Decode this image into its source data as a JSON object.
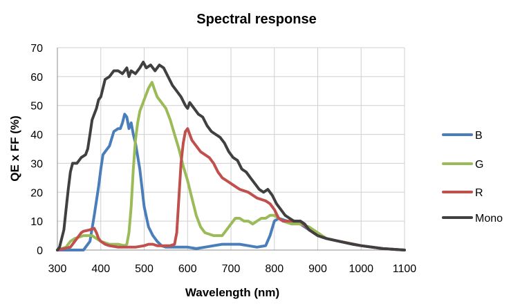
{
  "chart_data": {
    "type": "line",
    "title": "Spectral response",
    "xlabel": "Wavelength (nm)",
    "ylabel": "QE x FF (%)",
    "xlim": [
      300,
      1100
    ],
    "ylim": [
      0,
      70
    ],
    "xticks": [
      300,
      400,
      500,
      600,
      700,
      800,
      900,
      1000,
      1100
    ],
    "yticks": [
      0,
      10,
      20,
      30,
      40,
      50,
      60,
      70
    ],
    "grid": true,
    "legend_position": "right",
    "series": [
      {
        "name": "B",
        "color": "#4a7ebb",
        "points": [
          [
            300,
            0
          ],
          [
            360,
            0
          ],
          [
            375,
            3
          ],
          [
            385,
            12
          ],
          [
            395,
            22
          ],
          [
            400,
            28
          ],
          [
            405,
            33
          ],
          [
            410,
            34
          ],
          [
            420,
            36
          ],
          [
            430,
            41
          ],
          [
            440,
            42
          ],
          [
            445,
            42
          ],
          [
            450,
            44
          ],
          [
            455,
            47
          ],
          [
            460,
            46
          ],
          [
            465,
            42
          ],
          [
            470,
            44
          ],
          [
            475,
            40
          ],
          [
            480,
            37
          ],
          [
            490,
            28
          ],
          [
            500,
            15
          ],
          [
            510,
            8
          ],
          [
            520,
            5
          ],
          [
            530,
            3
          ],
          [
            540,
            1.5
          ],
          [
            550,
            1
          ],
          [
            570,
            1
          ],
          [
            600,
            1
          ],
          [
            620,
            0.5
          ],
          [
            640,
            1
          ],
          [
            660,
            1.5
          ],
          [
            680,
            2
          ],
          [
            700,
            2
          ],
          [
            720,
            2
          ],
          [
            740,
            1.5
          ],
          [
            760,
            1
          ],
          [
            780,
            1.5
          ],
          [
            790,
            5
          ],
          [
            800,
            10
          ],
          [
            810,
            11
          ],
          [
            830,
            10
          ],
          [
            860,
            9
          ],
          [
            880,
            7
          ],
          [
            900,
            5
          ],
          [
            920,
            4
          ],
          [
            950,
            3
          ],
          [
            1000,
            1.5
          ],
          [
            1050,
            0.5
          ],
          [
            1100,
            0
          ]
        ]
      },
      {
        "name": "G",
        "color": "#9bbb59",
        "points": [
          [
            300,
            0
          ],
          [
            320,
            1
          ],
          [
            330,
            3
          ],
          [
            340,
            4
          ],
          [
            360,
            5
          ],
          [
            380,
            5
          ],
          [
            390,
            4
          ],
          [
            400,
            3
          ],
          [
            420,
            2
          ],
          [
            440,
            2
          ],
          [
            455,
            1.5
          ],
          [
            460,
            2
          ],
          [
            465,
            6
          ],
          [
            470,
            15
          ],
          [
            475,
            28
          ],
          [
            480,
            38
          ],
          [
            485,
            44
          ],
          [
            490,
            48
          ],
          [
            500,
            52
          ],
          [
            510,
            56
          ],
          [
            518,
            58
          ],
          [
            525,
            55
          ],
          [
            530,
            53
          ],
          [
            540,
            51
          ],
          [
            550,
            49
          ],
          [
            560,
            45
          ],
          [
            570,
            40
          ],
          [
            580,
            35
          ],
          [
            590,
            29
          ],
          [
            600,
            24
          ],
          [
            610,
            18
          ],
          [
            620,
            12
          ],
          [
            630,
            8
          ],
          [
            640,
            6
          ],
          [
            660,
            5
          ],
          [
            680,
            5
          ],
          [
            690,
            7
          ],
          [
            700,
            9
          ],
          [
            710,
            11
          ],
          [
            720,
            11
          ],
          [
            730,
            10
          ],
          [
            740,
            10
          ],
          [
            750,
            9
          ],
          [
            760,
            10
          ],
          [
            770,
            11
          ],
          [
            780,
            11
          ],
          [
            790,
            12
          ],
          [
            800,
            12
          ],
          [
            810,
            11
          ],
          [
            820,
            10
          ],
          [
            840,
            9
          ],
          [
            860,
            9
          ],
          [
            880,
            8
          ],
          [
            900,
            6
          ],
          [
            920,
            4
          ],
          [
            950,
            3
          ],
          [
            1000,
            1.5
          ],
          [
            1050,
            0.5
          ],
          [
            1100,
            0
          ]
        ]
      },
      {
        "name": "R",
        "color": "#c0504d",
        "points": [
          [
            300,
            0
          ],
          [
            330,
            1
          ],
          [
            340,
            3
          ],
          [
            350,
            5
          ],
          [
            355,
            6
          ],
          [
            360,
            6.5
          ],
          [
            375,
            7
          ],
          [
            385,
            7.5
          ],
          [
            390,
            6
          ],
          [
            395,
            4
          ],
          [
            400,
            3
          ],
          [
            410,
            2
          ],
          [
            420,
            1.5
          ],
          [
            440,
            1
          ],
          [
            480,
            1
          ],
          [
            500,
            1.5
          ],
          [
            510,
            2
          ],
          [
            520,
            2
          ],
          [
            530,
            1.5
          ],
          [
            560,
            1.5
          ],
          [
            570,
            2
          ],
          [
            575,
            6
          ],
          [
            580,
            18
          ],
          [
            585,
            30
          ],
          [
            590,
            37
          ],
          [
            595,
            41
          ],
          [
            600,
            42
          ],
          [
            605,
            40
          ],
          [
            610,
            38
          ],
          [
            620,
            36
          ],
          [
            630,
            34
          ],
          [
            640,
            33
          ],
          [
            650,
            32
          ],
          [
            660,
            30
          ],
          [
            670,
            27
          ],
          [
            680,
            25
          ],
          [
            690,
            24
          ],
          [
            700,
            23
          ],
          [
            710,
            22
          ],
          [
            720,
            21
          ],
          [
            740,
            20
          ],
          [
            760,
            18
          ],
          [
            780,
            17
          ],
          [
            790,
            16
          ],
          [
            800,
            14
          ],
          [
            810,
            11
          ],
          [
            820,
            10
          ],
          [
            840,
            10
          ],
          [
            860,
            10
          ],
          [
            880,
            7
          ],
          [
            900,
            5
          ],
          [
            920,
            4
          ],
          [
            950,
            3
          ],
          [
            1000,
            1.5
          ],
          [
            1050,
            0.5
          ],
          [
            1100,
            0
          ]
        ]
      },
      {
        "name": "Mono",
        "color": "#404040",
        "points": [
          [
            300,
            0
          ],
          [
            305,
            1
          ],
          [
            315,
            7
          ],
          [
            320,
            14
          ],
          [
            325,
            21
          ],
          [
            330,
            27
          ],
          [
            335,
            30
          ],
          [
            345,
            30
          ],
          [
            355,
            32
          ],
          [
            365,
            33
          ],
          [
            370,
            35
          ],
          [
            375,
            40
          ],
          [
            380,
            45
          ],
          [
            385,
            47
          ],
          [
            390,
            49
          ],
          [
            395,
            52
          ],
          [
            400,
            53
          ],
          [
            405,
            56
          ],
          [
            410,
            59
          ],
          [
            420,
            60
          ],
          [
            430,
            62
          ],
          [
            440,
            62
          ],
          [
            450,
            61
          ],
          [
            460,
            63
          ],
          [
            465,
            60
          ],
          [
            470,
            62
          ],
          [
            480,
            61
          ],
          [
            490,
            63
          ],
          [
            498,
            65
          ],
          [
            505,
            63
          ],
          [
            515,
            64
          ],
          [
            525,
            62
          ],
          [
            535,
            64
          ],
          [
            545,
            63
          ],
          [
            555,
            60
          ],
          [
            565,
            57
          ],
          [
            575,
            55
          ],
          [
            585,
            53
          ],
          [
            595,
            50
          ],
          [
            600,
            49
          ],
          [
            605,
            51
          ],
          [
            615,
            49
          ],
          [
            625,
            47
          ],
          [
            635,
            46
          ],
          [
            645,
            43
          ],
          [
            655,
            41
          ],
          [
            665,
            40
          ],
          [
            675,
            39
          ],
          [
            685,
            37
          ],
          [
            695,
            34
          ],
          [
            705,
            32
          ],
          [
            715,
            31
          ],
          [
            725,
            28
          ],
          [
            735,
            27
          ],
          [
            745,
            25
          ],
          [
            755,
            23
          ],
          [
            765,
            21
          ],
          [
            775,
            20
          ],
          [
            785,
            21
          ],
          [
            795,
            19
          ],
          [
            805,
            16
          ],
          [
            815,
            14
          ],
          [
            825,
            12
          ],
          [
            835,
            11
          ],
          [
            845,
            10
          ],
          [
            860,
            10
          ],
          [
            870,
            9
          ],
          [
            880,
            7
          ],
          [
            900,
            5
          ],
          [
            920,
            4
          ],
          [
            950,
            3
          ],
          [
            980,
            2
          ],
          [
            1000,
            1.5
          ],
          [
            1050,
            0.5
          ],
          [
            1100,
            0
          ]
        ]
      }
    ]
  }
}
